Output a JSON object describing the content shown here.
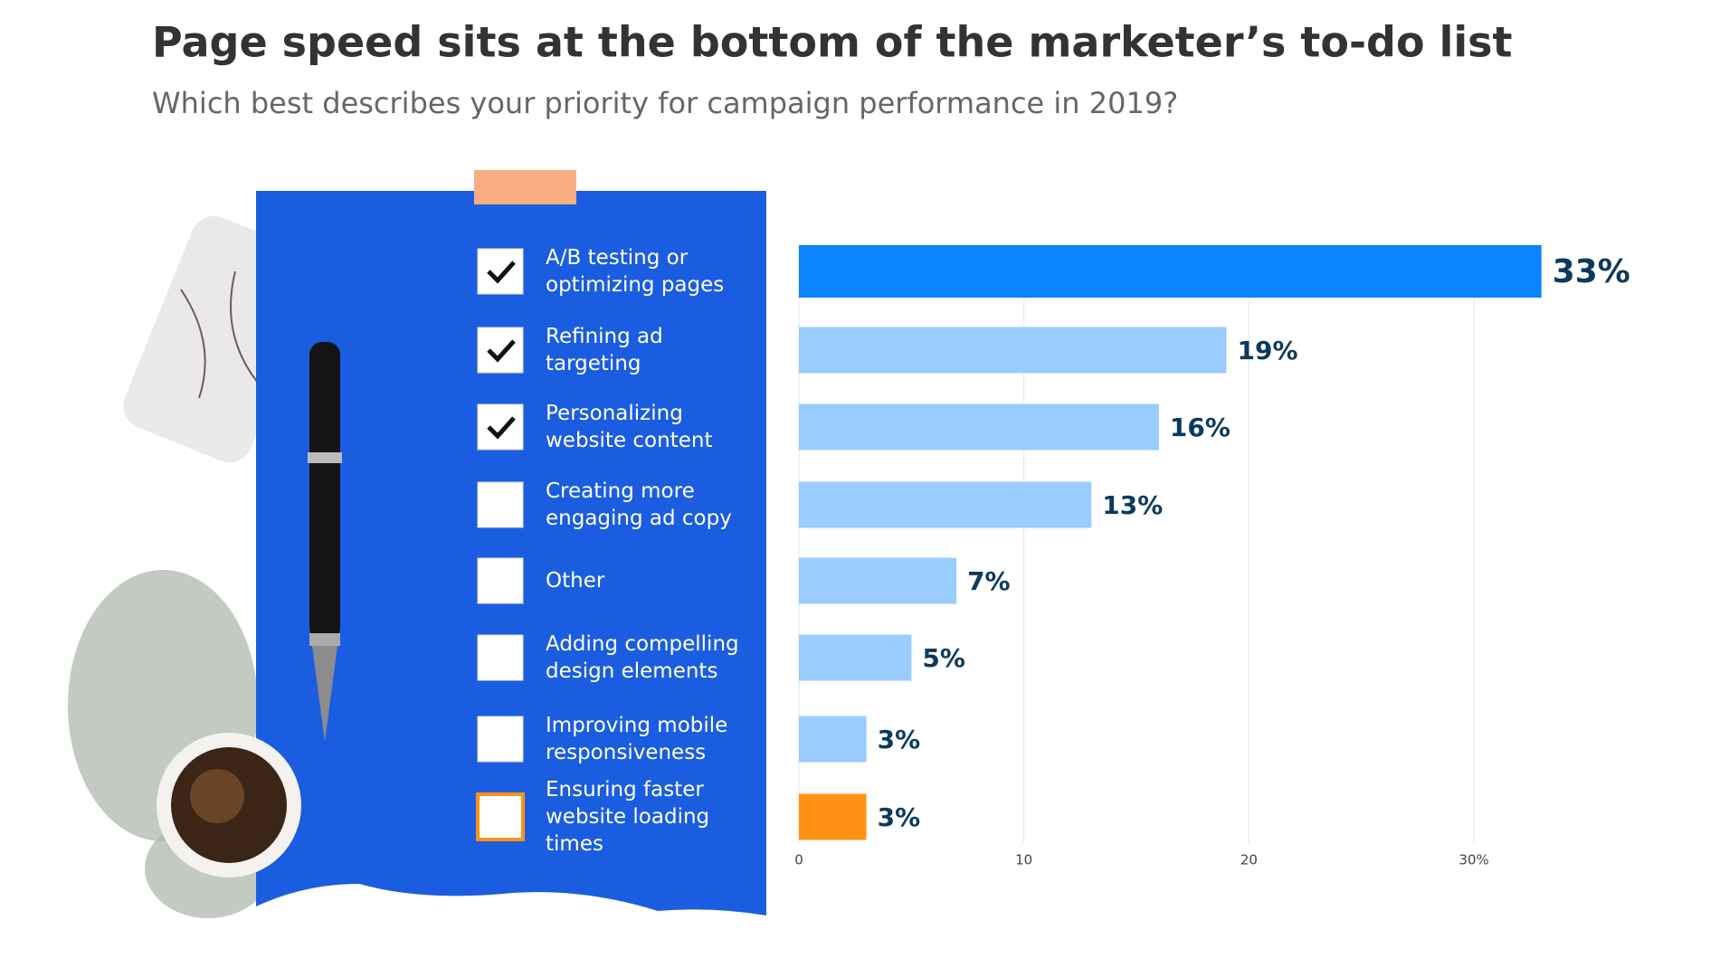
{
  "chart_data": {
    "type": "bar",
    "orientation": "horizontal",
    "title": "Page speed sits at the bottom of the marketer’s to-do list",
    "subtitle": "Which best describes your priority for campaign performance in 2019?",
    "categories": [
      "A/B testing or optimizing  pages",
      "Refining ad targeting",
      "Personalizing website content",
      "Creating more engaging ad copy",
      "Other",
      "Adding compelling design elements",
      "Improving mobile responsiveness",
      "Ensuring faster website loading times"
    ],
    "values": [
      33,
      19,
      16,
      13,
      7,
      5,
      3,
      3
    ],
    "value_labels": [
      "33%",
      "19%",
      "16%",
      "13%",
      "7%",
      "5%",
      "3%",
      "3%"
    ],
    "colors": [
      "#0a84ff",
      "#99ccff",
      "#99ccff",
      "#99ccff",
      "#99ccff",
      "#99ccff",
      "#99ccff",
      "#ff9214"
    ],
    "checked": [
      true,
      true,
      true,
      false,
      false,
      false,
      false,
      false
    ],
    "xlim": [
      0,
      35
    ],
    "xticks": [
      0,
      10,
      20,
      {
        "value": 30,
        "label": "30%"
      }
    ],
    "grid": true
  }
}
